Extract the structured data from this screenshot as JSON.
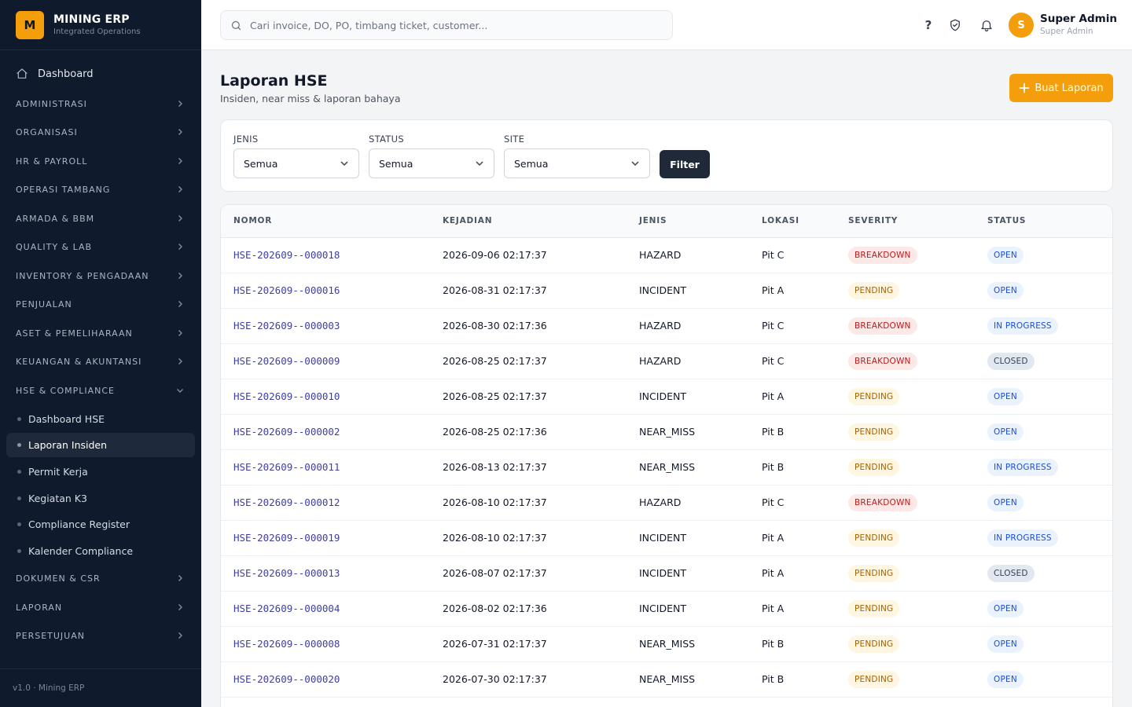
{
  "brand": {
    "logo": "M",
    "name": "MINING ERP",
    "subtitle": "Integrated Operations"
  },
  "sidebar": {
    "dashboard": "Dashboard",
    "groups": [
      "ADMINISTRASI",
      "ORGANISASI",
      "HR & PAYROLL",
      "OPERASI TAMBANG",
      "ARMADA & BBM",
      "QUALITY & LAB",
      "INVENTORY & PENGADAAN",
      "PENJUALAN",
      "ASET & PEMELIHARAAN",
      "KEUANGAN & AKUNTANSI",
      "HSE & COMPLIANCE"
    ],
    "hse_items": [
      "Dashboard HSE",
      "Laporan Insiden",
      "Permit Kerja",
      "Kegiatan K3",
      "Compliance Register",
      "Kalender Compliance"
    ],
    "active_item": "Laporan Insiden",
    "groups_after": [
      "DOKUMEN & CSR",
      "LAPORAN",
      "PERSETUJUAN"
    ],
    "footer": "v1.0 · Mining ERP"
  },
  "topbar": {
    "search_placeholder": "Cari invoice, DO, PO, timbang ticket, customer...",
    "help": "?",
    "avatar_initial": "S",
    "user_name": "Super Admin",
    "user_role": "Super Admin"
  },
  "page": {
    "title": "Laporan HSE",
    "subtitle": "Insiden, near miss & laporan bahaya",
    "create_button": "Buat Laporan"
  },
  "filters": {
    "jenis": {
      "label": "JENIS",
      "value": "Semua"
    },
    "status": {
      "label": "STATUS",
      "value": "Semua"
    },
    "site": {
      "label": "SITE",
      "value": "Semua"
    },
    "button": "Filter"
  },
  "table": {
    "headers": [
      "NOMOR",
      "KEJADIAN",
      "JENIS",
      "LOKASI",
      "SEVERITY",
      "STATUS"
    ],
    "rows": [
      {
        "nomor": "HSE-202609--000018",
        "kejadian": "2026-09-06 02:17:37",
        "jenis": "HAZARD",
        "lokasi": "Pit C",
        "severity": "BREAKDOWN",
        "status": "OPEN"
      },
      {
        "nomor": "HSE-202609--000016",
        "kejadian": "2026-08-31 02:17:37",
        "jenis": "INCIDENT",
        "lokasi": "Pit A",
        "severity": "PENDING",
        "status": "OPEN"
      },
      {
        "nomor": "HSE-202609--000003",
        "kejadian": "2026-08-30 02:17:36",
        "jenis": "HAZARD",
        "lokasi": "Pit C",
        "severity": "BREAKDOWN",
        "status": "IN PROGRESS"
      },
      {
        "nomor": "HSE-202609--000009",
        "kejadian": "2026-08-25 02:17:37",
        "jenis": "HAZARD",
        "lokasi": "Pit C",
        "severity": "BREAKDOWN",
        "status": "CLOSED"
      },
      {
        "nomor": "HSE-202609--000010",
        "kejadian": "2026-08-25 02:17:37",
        "jenis": "INCIDENT",
        "lokasi": "Pit A",
        "severity": "PENDING",
        "status": "OPEN"
      },
      {
        "nomor": "HSE-202609--000002",
        "kejadian": "2026-08-25 02:17:36",
        "jenis": "NEAR_MISS",
        "lokasi": "Pit B",
        "severity": "PENDING",
        "status": "OPEN"
      },
      {
        "nomor": "HSE-202609--000011",
        "kejadian": "2026-08-13 02:17:37",
        "jenis": "NEAR_MISS",
        "lokasi": "Pit B",
        "severity": "PENDING",
        "status": "IN PROGRESS"
      },
      {
        "nomor": "HSE-202609--000012",
        "kejadian": "2026-08-10 02:17:37",
        "jenis": "HAZARD",
        "lokasi": "Pit C",
        "severity": "BREAKDOWN",
        "status": "OPEN"
      },
      {
        "nomor": "HSE-202609--000019",
        "kejadian": "2026-08-10 02:17:37",
        "jenis": "INCIDENT",
        "lokasi": "Pit A",
        "severity": "PENDING",
        "status": "IN PROGRESS"
      },
      {
        "nomor": "HSE-202609--000013",
        "kejadian": "2026-08-07 02:17:37",
        "jenis": "INCIDENT",
        "lokasi": "Pit A",
        "severity": "PENDING",
        "status": "CLOSED"
      },
      {
        "nomor": "HSE-202609--000004",
        "kejadian": "2026-08-02 02:17:36",
        "jenis": "INCIDENT",
        "lokasi": "Pit A",
        "severity": "PENDING",
        "status": "OPEN"
      },
      {
        "nomor": "HSE-202609--000008",
        "kejadian": "2026-07-31 02:17:37",
        "jenis": "NEAR_MISS",
        "lokasi": "Pit B",
        "severity": "PENDING",
        "status": "OPEN"
      },
      {
        "nomor": "HSE-202609--000020",
        "kejadian": "2026-07-30 02:17:37",
        "jenis": "NEAR_MISS",
        "lokasi": "Pit B",
        "severity": "PENDING",
        "status": "OPEN"
      }
    ]
  },
  "colors": {
    "sidebar_bg": "#0f1b2d",
    "accent": "#f59e0b",
    "filter_button": "#1f2937",
    "severity_breakdown": "#b91c1c",
    "severity_pending": "#a16207",
    "status_open": "#1d4ed8",
    "status_closed": "#334155"
  }
}
